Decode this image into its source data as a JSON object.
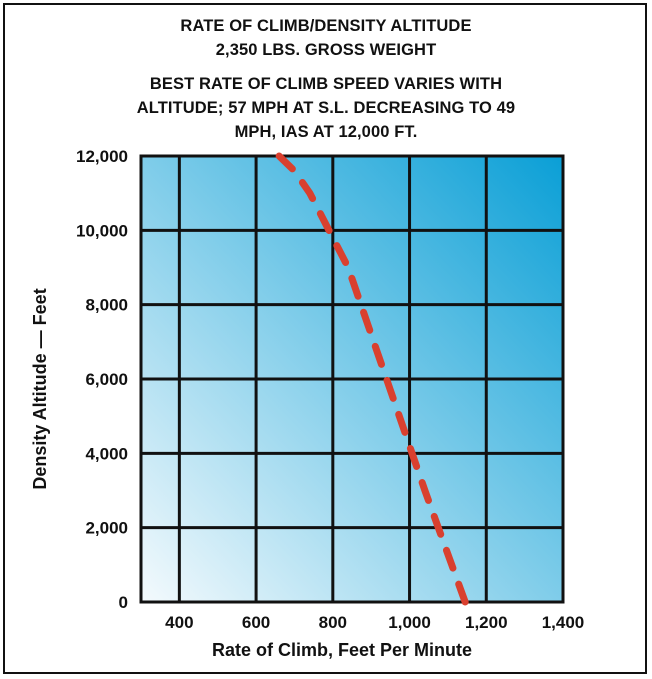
{
  "chart_data": {
    "type": "line",
    "title": "RATE OF CLIMB/DENSITY ALTITUDE",
    "subtitle": "2,350 LBS. GROSS WEIGHT",
    "annotation_lines": [
      "BEST RATE OF CLIMB SPEED VARIES WITH",
      "ALTITUDE; 57 MPH AT S.L. DECREASING TO 49",
      "MPH, IAS AT 12,000 FT."
    ],
    "xlabel": "Rate of Climb, Feet Per Minute",
    "ylabel": "Density Altitude — Feet",
    "xlim": [
      300,
      1400
    ],
    "ylim": [
      0,
      12000
    ],
    "x_ticks": [
      400,
      600,
      800,
      1000,
      1200,
      1400
    ],
    "x_tick_labels": [
      "400",
      "600",
      "800",
      "1,000",
      "1,200",
      "1,400"
    ],
    "y_ticks": [
      0,
      2000,
      4000,
      6000,
      8000,
      10000,
      12000
    ],
    "y_tick_labels": [
      "0",
      "2,000",
      "4,000",
      "6,000",
      "8,000",
      "10,000",
      "12,000"
    ],
    "grid": true,
    "series": [
      {
        "x": [
          1145,
          1110,
          1075,
          1040,
          990,
          940,
          890,
          840,
          790,
          740,
          700,
          660
        ],
        "y": [
          0,
          1000,
          2000,
          3000,
          4500,
          6000,
          7500,
          9000,
          10000,
          11000,
          11600,
          12000
        ],
        "style": "dashed",
        "color": "#d9402f"
      }
    ],
    "colors": {
      "gradient_light": "#f4fafd",
      "gradient_dark": "#0a9fd6",
      "grid": "#111111"
    }
  }
}
